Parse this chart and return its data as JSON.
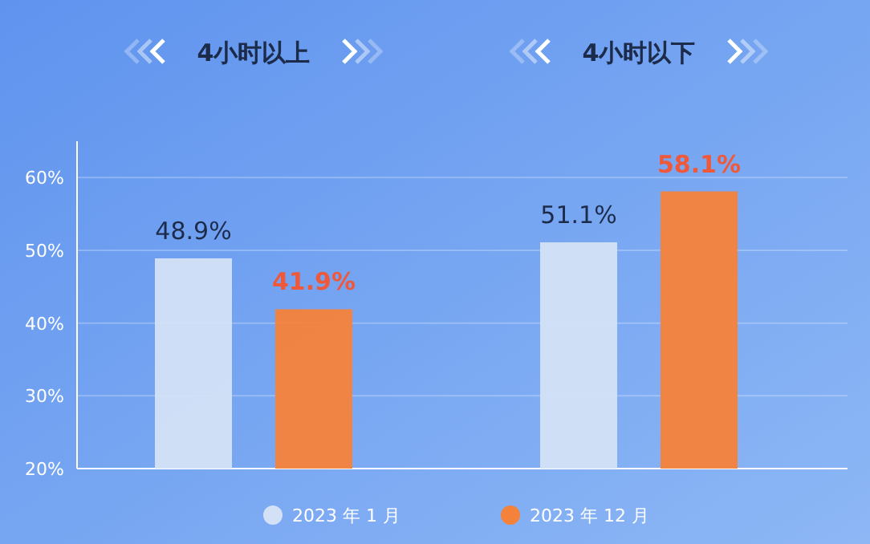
{
  "chart_data": {
    "type": "bar",
    "categories": [
      "4小时以上",
      "4小时以下"
    ],
    "series": [
      {
        "name": "2023 年 1 月",
        "color": "#d3e1f6",
        "values": [
          48.9,
          51.1
        ],
        "value_labels": [
          "48.9%",
          "51.1%"
        ]
      },
      {
        "name": "2023 年 12 月",
        "color": "#f5823a",
        "values": [
          41.9,
          58.1
        ],
        "value_labels": [
          "41.9%",
          "58.1%"
        ]
      }
    ],
    "ylim": [
      20,
      65
    ],
    "yticks": [
      {
        "value": 20,
        "label": "20%"
      },
      {
        "value": 30,
        "label": "30%"
      },
      {
        "value": 40,
        "label": "40%"
      },
      {
        "value": 50,
        "label": "50%"
      },
      {
        "value": 60,
        "label": "60%"
      }
    ],
    "grid": "y",
    "legend": "bottom"
  }
}
